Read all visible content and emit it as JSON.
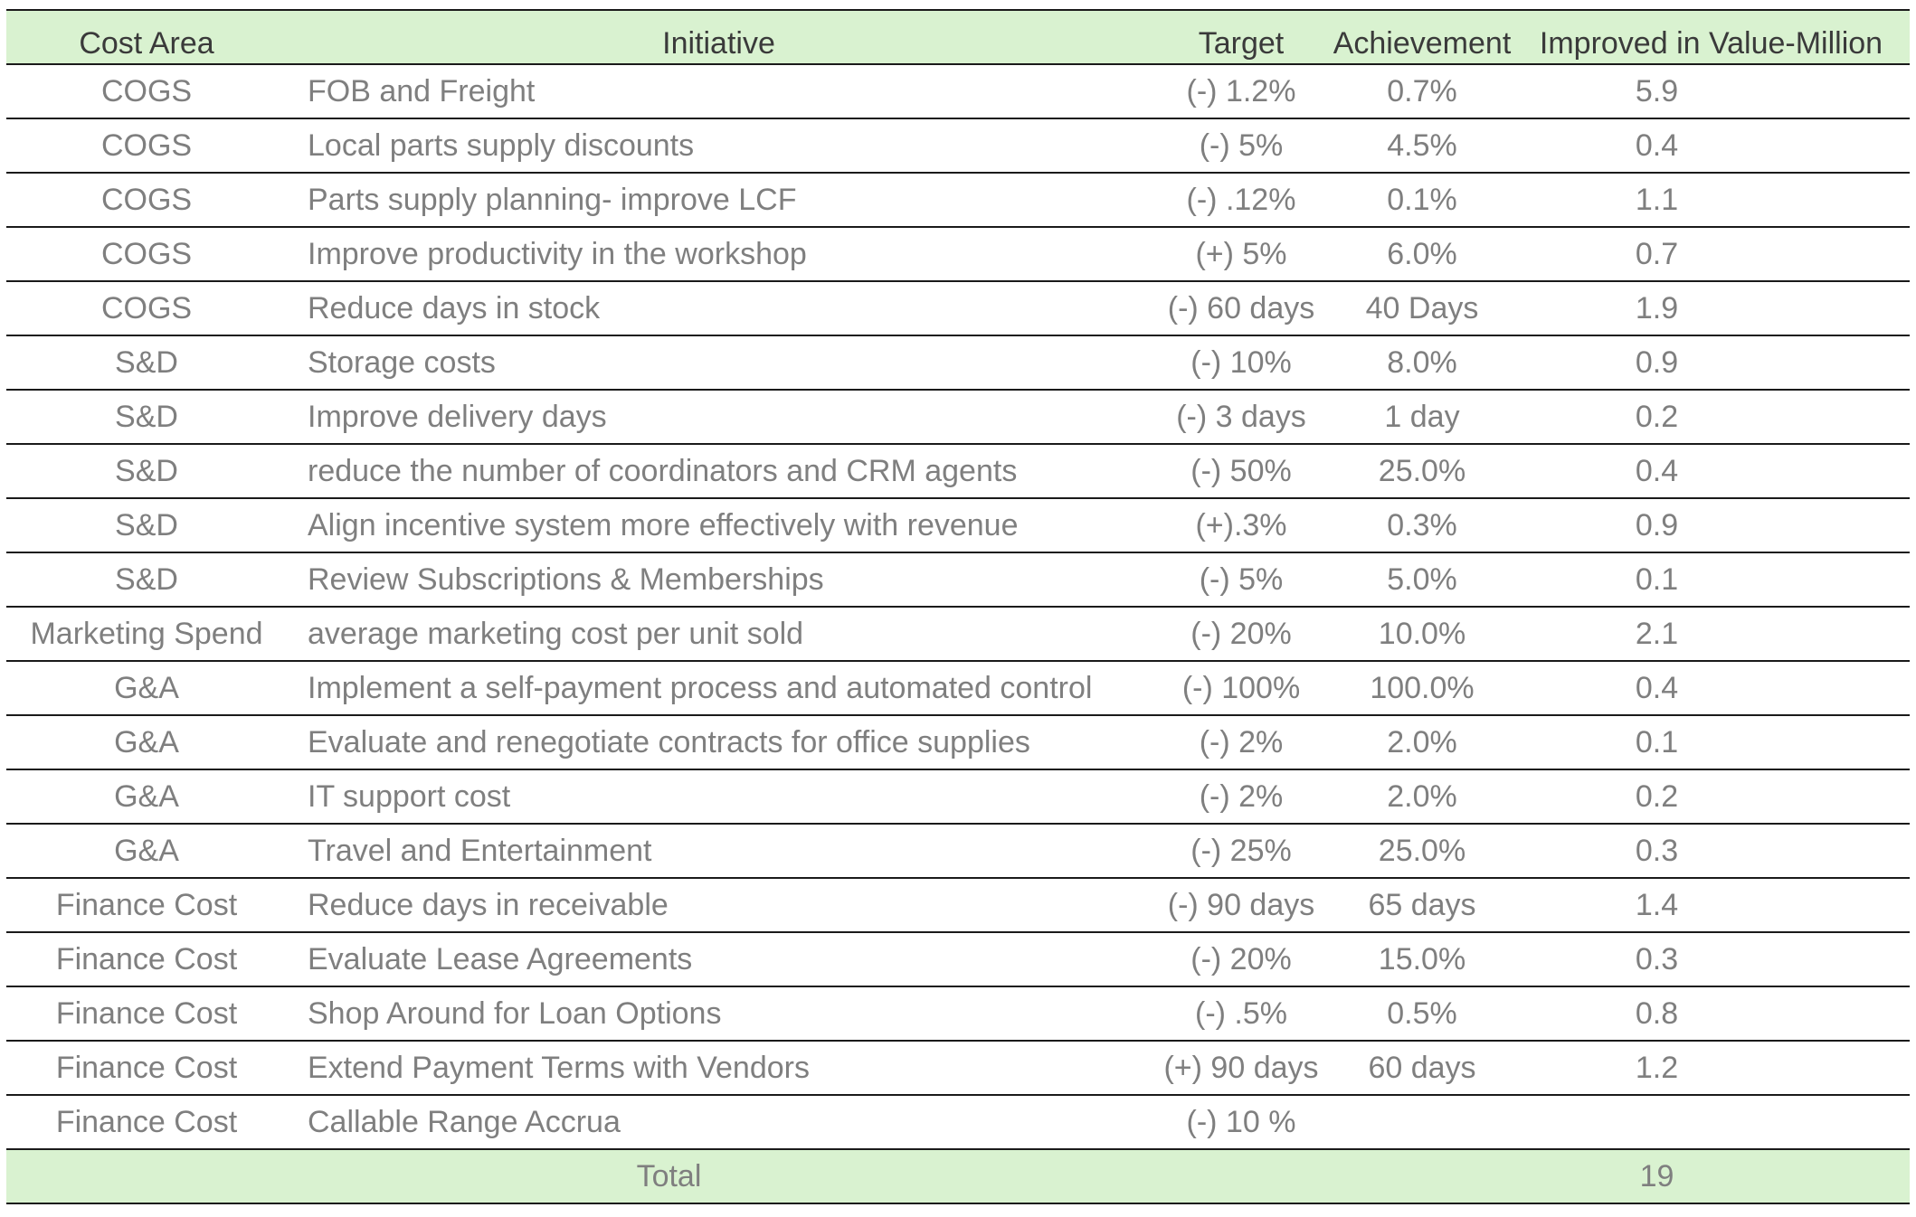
{
  "table": {
    "headers": {
      "cost_area": "Cost Area",
      "initiative": "Initiative",
      "target": "Target",
      "achievement": "Achievement",
      "improved_value": "Improved in Value-Million"
    },
    "rows": [
      {
        "cost_area": "COGS",
        "initiative": "FOB and Freight",
        "target": "(-) 1.2%",
        "achievement": "0.7%",
        "value": "5.9"
      },
      {
        "cost_area": "COGS",
        "initiative": "Local parts supply discounts",
        "target": "(-) 5%",
        "achievement": "4.5%",
        "value": "0.4"
      },
      {
        "cost_area": "COGS",
        "initiative": "Parts supply planning- improve LCF",
        "target": "(-) .12%",
        "achievement": "0.1%",
        "value": "1.1"
      },
      {
        "cost_area": "COGS",
        "initiative": "Improve productivity in the workshop",
        "target": "(+) 5%",
        "achievement": "6.0%",
        "value": "0.7"
      },
      {
        "cost_area": "COGS",
        "initiative": "Reduce days in stock",
        "target": "(-) 60 days",
        "achievement": "40 Days",
        "value": "1.9"
      },
      {
        "cost_area": "S&D",
        "initiative": "Storage costs",
        "target": "(-) 10%",
        "achievement": "8.0%",
        "value": "0.9"
      },
      {
        "cost_area": "S&D",
        "initiative": "Improve delivery days",
        "target": "(-) 3 days",
        "achievement": "1 day",
        "value": "0.2"
      },
      {
        "cost_area": "S&D",
        "initiative": "reduce the number of coordinators and CRM agents",
        "target": "(-) 50%",
        "achievement": "25.0%",
        "value": "0.4"
      },
      {
        "cost_area": "S&D",
        "initiative": "Align incentive system more effectively with revenue",
        "target": "(+).3%",
        "achievement": "0.3%",
        "value": "0.9"
      },
      {
        "cost_area": "S&D",
        "initiative": "Review Subscriptions & Memberships",
        "target": "(-) 5%",
        "achievement": "5.0%",
        "value": "0.1"
      },
      {
        "cost_area": "Marketing Spend",
        "initiative": "average marketing cost per unit sold",
        "target": "(-) 20%",
        "achievement": "10.0%",
        "value": "2.1"
      },
      {
        "cost_area": "G&A",
        "initiative": "Implement a self-payment process and automated control",
        "target": "(-) 100%",
        "achievement": "100.0%",
        "value": "0.4"
      },
      {
        "cost_area": "G&A",
        "initiative": "Evaluate and renegotiate contracts for office supplies",
        "target": "(-) 2%",
        "achievement": "2.0%",
        "value": "0.1"
      },
      {
        "cost_area": "G&A",
        "initiative": "IT support cost",
        "target": "(-) 2%",
        "achievement": "2.0%",
        "value": "0.2"
      },
      {
        "cost_area": "G&A",
        "initiative": "Travel and Entertainment",
        "target": "(-) 25%",
        "achievement": "25.0%",
        "value": "0.3"
      },
      {
        "cost_area": "Finance Cost",
        "initiative": "Reduce days in receivable",
        "target": "(-) 90 days",
        "achievement": "65 days",
        "value": "1.4"
      },
      {
        "cost_area": "Finance Cost",
        "initiative": "Evaluate Lease Agreements",
        "target": "(-) 20%",
        "achievement": "15.0%",
        "value": "0.3"
      },
      {
        "cost_area": "Finance Cost",
        "initiative": "Shop Around for Loan Options",
        "target": "(-) .5%",
        "achievement": "0.5%",
        "value": "0.8"
      },
      {
        "cost_area": "Finance Cost",
        "initiative": "Extend Payment Terms with Vendors",
        "target": "(+) 90 days",
        "achievement": "60 days",
        "value": "1.2"
      },
      {
        "cost_area": "Finance Cost",
        "initiative": "Callable Range Accrua",
        "target": "(-) 10 %",
        "achievement": "",
        "value": ""
      }
    ],
    "total": {
      "label": "Total",
      "value": "19"
    }
  }
}
